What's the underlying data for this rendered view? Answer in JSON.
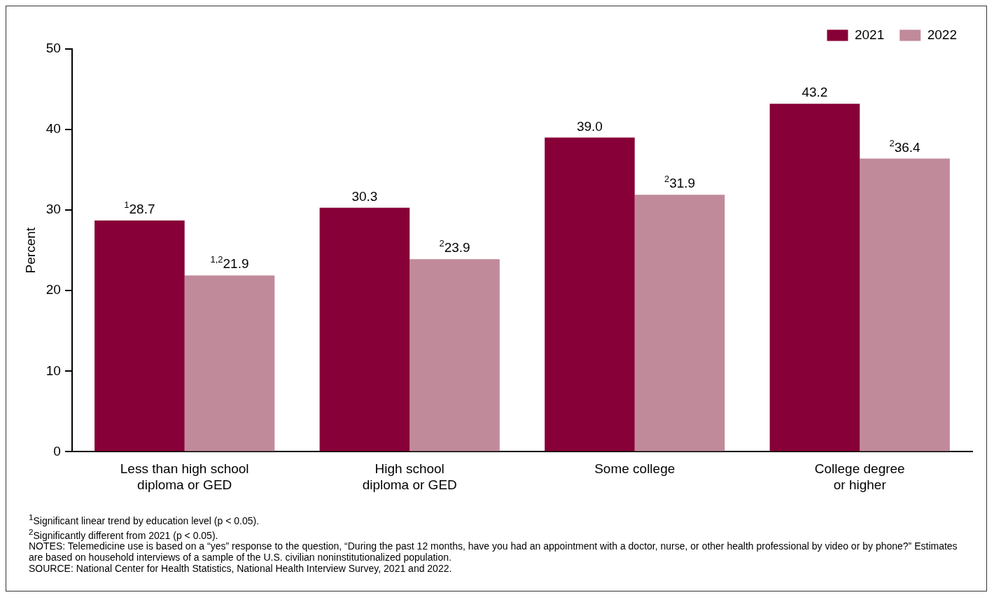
{
  "chart_data": {
    "type": "bar",
    "ylabel": "Percent",
    "categories": [
      "Less than high school diploma or GED",
      "High school diploma or GED",
      "Some college",
      "College degree or higher"
    ],
    "series": [
      {
        "name": "2021",
        "color": "#870037",
        "values": [
          28.7,
          30.3,
          39.0,
          43.2
        ],
        "value_labels": [
          "$^{1}$28.7",
          "30.3",
          "39.0",
          "43.2"
        ]
      },
      {
        "name": "2022",
        "color": "#c18a9a",
        "values": [
          21.9,
          23.9,
          31.9,
          36.4
        ],
        "value_labels": [
          "$^{1,2}$21.9",
          "$^{2}$23.9",
          "$^{2}$31.9",
          "$^{2}$36.4"
        ]
      }
    ],
    "ylim": [
      0,
      50
    ],
    "yticks": [
      0,
      10,
      20,
      30,
      40,
      50
    ],
    "grid": false,
    "legend": "top right",
    "annotations": [
      "$^{1}$Significant linear trend by education level (p < 0.05).",
      "$^{2}$Significantly different from 2021 (p < 0.05).",
      "NOTES: Telemedicine use is based on a “yes” response to the question, “During the past 12 months, have you had an appointment with a doctor, nurse, or other health professional by video or by phone?” Estimates are based on household interviews of a sample of the U.S. civilian noninstitutionalized population.",
      "SOURCE: National Center for Health Statistics, National Health Interview Survey, 2021 and 2022."
    ]
  }
}
